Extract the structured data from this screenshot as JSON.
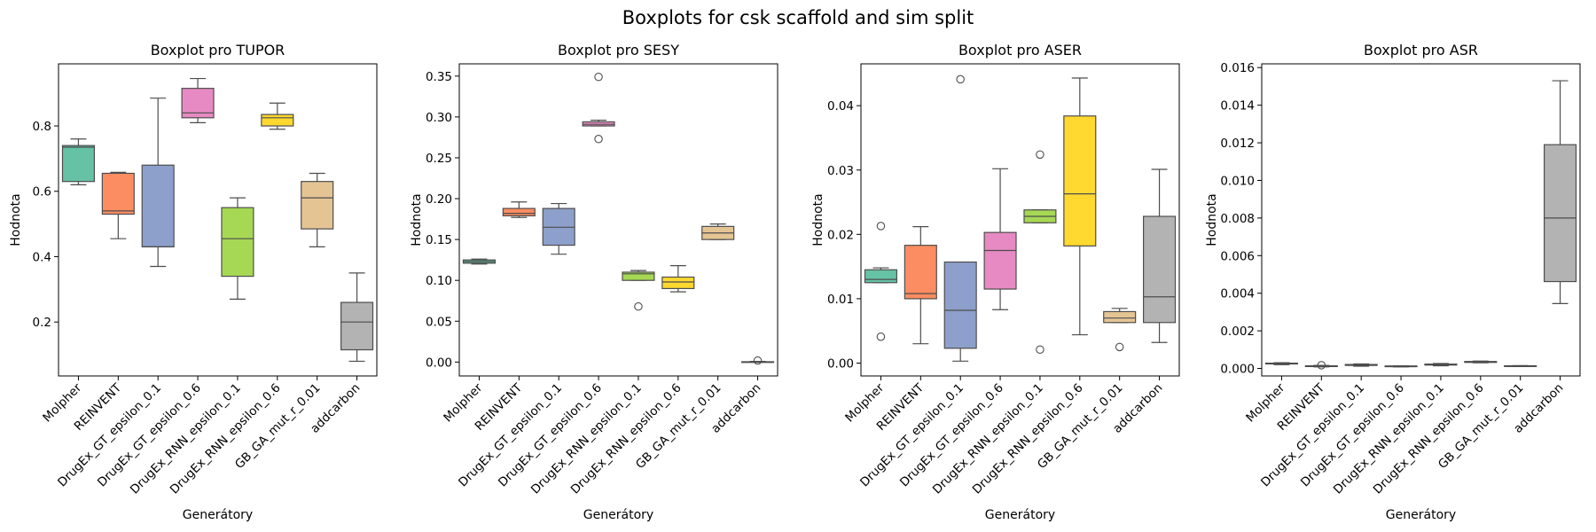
{
  "figure": {
    "title": "Boxplots for csk scaffold and sim split"
  },
  "palette": [
    "#66c2a5",
    "#fc8d62",
    "#8da0cb",
    "#e78ac3",
    "#a6d854",
    "#ffd92f",
    "#e5c494",
    "#b3b3b3"
  ],
  "chart_data": [
    {
      "type": "box",
      "title": "Boxplot pro TUPOR",
      "xlabel": "Generátory",
      "ylabel": "Hodnota",
      "ylim": [
        0.035,
        0.99
      ],
      "yticks": [
        "0.2",
        "0.4",
        "0.6",
        "0.8"
      ],
      "ytick_values": [
        0.2,
        0.4,
        0.6,
        0.8
      ],
      "categories": [
        "Molpher",
        "REINVENT",
        "DrugEx_GT_epsilon_0.1",
        "DrugEx_GT_epsilon_0.6",
        "DrugEx_RNN_epsilon_0.1",
        "DrugEx_RNN_epsilon_0.6",
        "GB_GA_mut_r_0.01",
        "addcarbon"
      ],
      "boxes": [
        {
          "whislo": 0.62,
          "q1": 0.63,
          "med": 0.735,
          "q3": 0.74,
          "whishi": 0.76,
          "fliers": []
        },
        {
          "whislo": 0.455,
          "q1": 0.53,
          "med": 0.54,
          "q3": 0.655,
          "whishi": 0.658,
          "fliers": []
        },
        {
          "whislo": 0.37,
          "q1": 0.43,
          "med": 0.43,
          "q3": 0.68,
          "whishi": 0.885,
          "fliers": []
        },
        {
          "whislo": 0.81,
          "q1": 0.825,
          "med": 0.84,
          "q3": 0.915,
          "whishi": 0.945,
          "fliers": []
        },
        {
          "whislo": 0.27,
          "q1": 0.34,
          "med": 0.455,
          "q3": 0.55,
          "whishi": 0.58,
          "fliers": []
        },
        {
          "whislo": 0.79,
          "q1": 0.8,
          "med": 0.825,
          "q3": 0.835,
          "whishi": 0.87,
          "fliers": []
        },
        {
          "whislo": 0.43,
          "q1": 0.485,
          "med": 0.58,
          "q3": 0.63,
          "whishi": 0.655,
          "fliers": []
        },
        {
          "whislo": 0.08,
          "q1": 0.115,
          "med": 0.2,
          "q3": 0.26,
          "whishi": 0.35,
          "fliers": []
        }
      ]
    },
    {
      "type": "box",
      "title": "Boxplot pro SESY",
      "xlabel": "Generátory",
      "ylabel": "Hodnota",
      "ylim": [
        -0.017,
        0.365
      ],
      "yticks": [
        "0.00",
        "0.05",
        "0.10",
        "0.15",
        "0.20",
        "0.25",
        "0.30",
        "0.35"
      ],
      "ytick_values": [
        0,
        0.05,
        0.1,
        0.15,
        0.2,
        0.25,
        0.3,
        0.35
      ],
      "categories": [
        "Molpher",
        "REINVENT",
        "DrugEx_GT_epsilon_0.1",
        "DrugEx_GT_epsilon_0.6",
        "DrugEx_RNN_epsilon_0.1",
        "DrugEx_RNN_epsilon_0.6",
        "GB_GA_mut_r_0.01",
        "addcarbon"
      ],
      "boxes": [
        {
          "whislo": 0.12,
          "q1": 0.121,
          "med": 0.123,
          "q3": 0.125,
          "whishi": 0.126,
          "fliers": []
        },
        {
          "whislo": 0.177,
          "q1": 0.179,
          "med": 0.182,
          "q3": 0.188,
          "whishi": 0.196,
          "fliers": []
        },
        {
          "whislo": 0.132,
          "q1": 0.143,
          "med": 0.165,
          "q3": 0.188,
          "whishi": 0.194,
          "fliers": []
        },
        {
          "whislo": 0.289,
          "q1": 0.289,
          "med": 0.291,
          "q3": 0.294,
          "whishi": 0.296,
          "fliers": [
            0.349,
            0.273
          ]
        },
        {
          "whislo": 0.1,
          "q1": 0.1,
          "med": 0.108,
          "q3": 0.11,
          "whishi": 0.112,
          "fliers": [
            0.068
          ]
        },
        {
          "whislo": 0.086,
          "q1": 0.09,
          "med": 0.098,
          "q3": 0.104,
          "whishi": 0.118,
          "fliers": []
        },
        {
          "whislo": 0.15,
          "q1": 0.15,
          "med": 0.158,
          "q3": 0.166,
          "whishi": 0.169,
          "fliers": []
        },
        {
          "whislo": 0.0,
          "q1": 0.0,
          "med": 0.0,
          "q3": 0.0004,
          "whishi": 0.0008,
          "fliers": [
            0.0018
          ]
        }
      ]
    },
    {
      "type": "box",
      "title": "Boxplot pro ASER",
      "xlabel": "Generátory",
      "ylabel": "Hodnota",
      "ylim": [
        -0.002,
        0.0465
      ],
      "yticks": [
        "0.00",
        "0.01",
        "0.02",
        "0.03",
        "0.04"
      ],
      "ytick_values": [
        0,
        0.01,
        0.02,
        0.03,
        0.04
      ],
      "categories": [
        "Molpher",
        "REINVENT",
        "DrugEx_GT_epsilon_0.1",
        "DrugEx_GT_epsilon_0.6",
        "DrugEx_RNN_epsilon_0.1",
        "DrugEx_RNN_epsilon_0.6",
        "GB_GA_mut_r_0.01",
        "addcarbon"
      ],
      "boxes": [
        {
          "whislo": 0.0125,
          "q1": 0.0125,
          "med": 0.013,
          "q3": 0.0145,
          "whishi": 0.0148,
          "fliers": [
            0.0213,
            0.0041
          ]
        },
        {
          "whislo": 0.003,
          "q1": 0.01,
          "med": 0.0108,
          "q3": 0.0183,
          "whishi": 0.0212,
          "fliers": []
        },
        {
          "whislo": 0.0003,
          "q1": 0.0023,
          "med": 0.0082,
          "q3": 0.0157,
          "whishi": 0.0157,
          "fliers": [
            0.0441
          ]
        },
        {
          "whislo": 0.0083,
          "q1": 0.0115,
          "med": 0.0175,
          "q3": 0.0203,
          "whishi": 0.0302,
          "fliers": []
        },
        {
          "whislo": 0.0218,
          "q1": 0.0218,
          "med": 0.0228,
          "q3": 0.0238,
          "whishi": 0.0238,
          "fliers": [
            0.0324,
            0.0021
          ]
        },
        {
          "whislo": 0.0044,
          "q1": 0.0182,
          "med": 0.0263,
          "q3": 0.0384,
          "whishi": 0.0443,
          "fliers": []
        },
        {
          "whislo": 0.0063,
          "q1": 0.0063,
          "med": 0.007,
          "q3": 0.008,
          "whishi": 0.0085,
          "fliers": [
            0.0025
          ]
        },
        {
          "whislo": 0.0032,
          "q1": 0.0063,
          "med": 0.0103,
          "q3": 0.0228,
          "whishi": 0.0301,
          "fliers": []
        }
      ]
    },
    {
      "type": "box",
      "title": "Boxplot pro ASR",
      "xlabel": "Generátory",
      "ylabel": "Hodnota",
      "ylim": [
        -0.0004,
        0.0162
      ],
      "yticks": [
        "0.000",
        "0.002",
        "0.004",
        "0.006",
        "0.008",
        "0.010",
        "0.012",
        "0.014",
        "0.016"
      ],
      "ytick_values": [
        0,
        0.002,
        0.004,
        0.006,
        0.008,
        0.01,
        0.012,
        0.014,
        0.016
      ],
      "categories": [
        "Molpher",
        "REINVENT",
        "DrugEx_GT_epsilon_0.1",
        "DrugEx_GT_epsilon_0.6",
        "DrugEx_RNN_epsilon_0.1",
        "DrugEx_RNN_epsilon_0.6",
        "GB_GA_mut_r_0.01",
        "addcarbon"
      ],
      "boxes": [
        {
          "whislo": 0.0002,
          "q1": 0.00024,
          "med": 0.00026,
          "q3": 0.00028,
          "whishi": 0.0003,
          "fliers": []
        },
        {
          "whislo": 8e-05,
          "q1": 0.0001,
          "med": 0.00012,
          "q3": 0.00014,
          "whishi": 0.00016,
          "fliers": [
            0.00017
          ]
        },
        {
          "whislo": 0.00012,
          "q1": 0.00016,
          "med": 0.00018,
          "q3": 0.00021,
          "whishi": 0.00024,
          "fliers": []
        },
        {
          "whislo": 8e-05,
          "q1": 0.0001,
          "med": 0.00012,
          "q3": 0.00013,
          "whishi": 0.00014,
          "fliers": []
        },
        {
          "whislo": 0.00014,
          "q1": 0.00018,
          "med": 0.0002,
          "q3": 0.00023,
          "whishi": 0.00026,
          "fliers": []
        },
        {
          "whislo": 0.0003,
          "q1": 0.00032,
          "med": 0.00035,
          "q3": 0.00037,
          "whishi": 0.00039,
          "fliers": []
        },
        {
          "whislo": 0.0001,
          "q1": 0.00011,
          "med": 0.00012,
          "q3": 0.00014,
          "whishi": 0.00015,
          "fliers": []
        },
        {
          "whislo": 0.00345,
          "q1": 0.00462,
          "med": 0.008,
          "q3": 0.0119,
          "whishi": 0.0153,
          "fliers": []
        }
      ]
    }
  ]
}
